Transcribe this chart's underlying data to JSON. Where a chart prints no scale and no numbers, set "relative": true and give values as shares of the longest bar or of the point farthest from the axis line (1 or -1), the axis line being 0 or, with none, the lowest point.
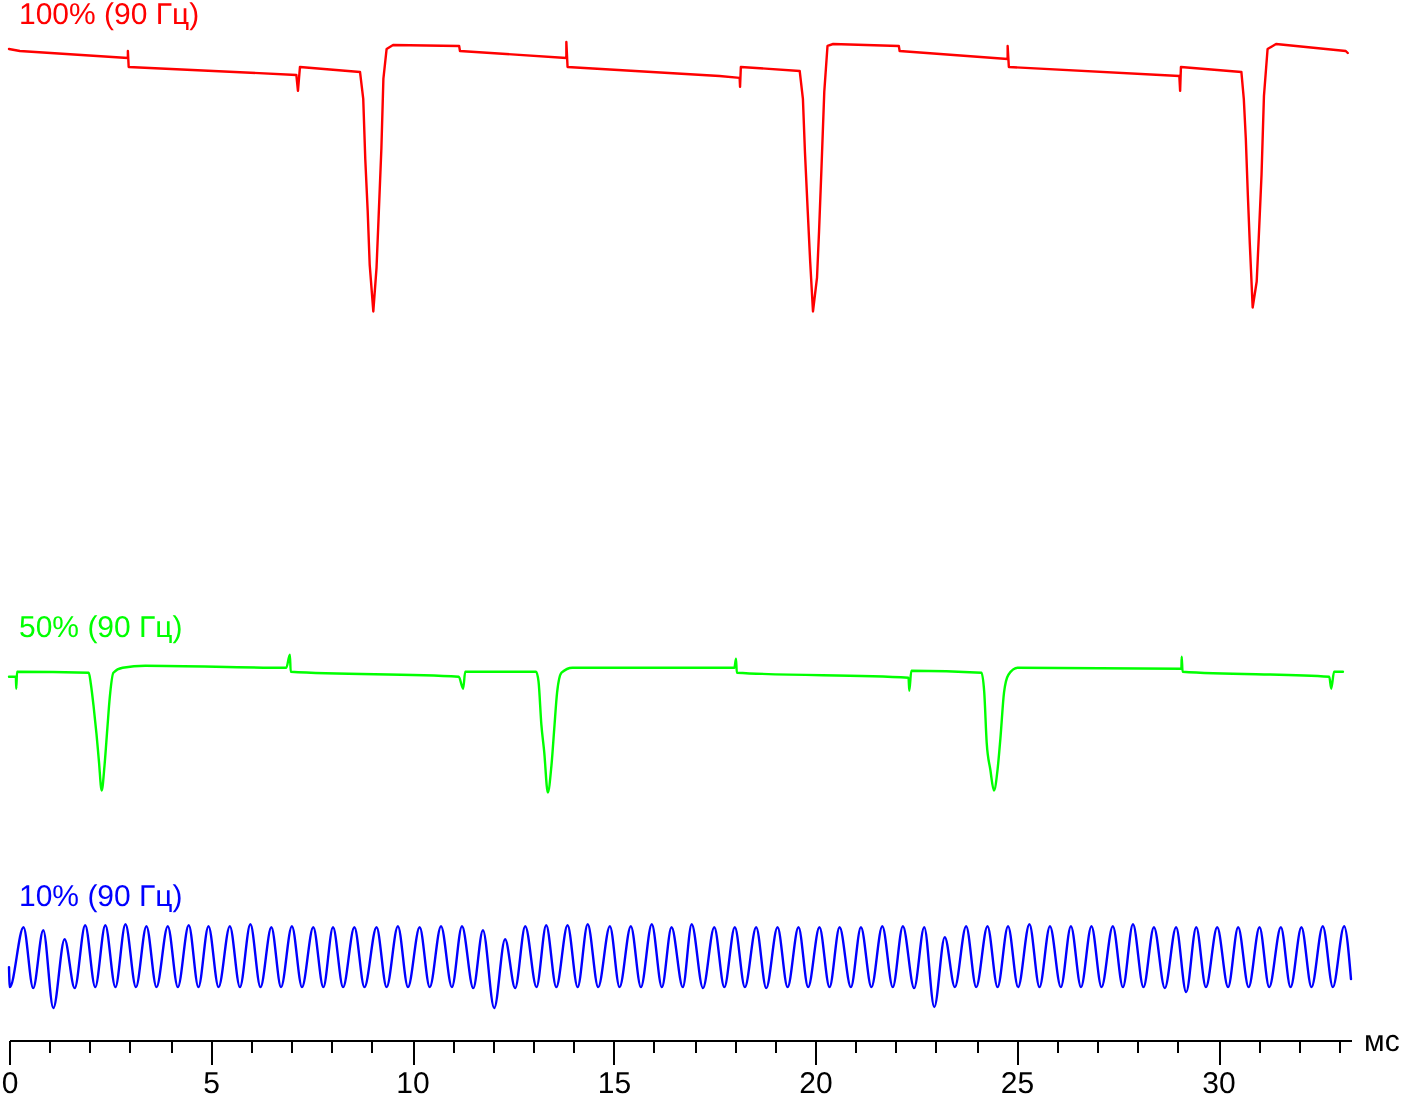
{
  "chart_data": {
    "type": "line",
    "xlabel": "мс",
    "relative": true,
    "xlim": [
      0,
      33.3
    ],
    "xticks": [
      0,
      {
        "value": 1,
        "label": null
      },
      {
        "value": 2,
        "label": null
      },
      {
        "value": 3,
        "label": null
      },
      {
        "value": 4,
        "label": null
      },
      5,
      {
        "value": 6,
        "label": null
      },
      {
        "value": 7,
        "label": null
      },
      {
        "value": 8,
        "label": null
      },
      {
        "value": 9,
        "label": null
      },
      10,
      {
        "value": 11,
        "label": null
      },
      {
        "value": 12,
        "label": null
      },
      {
        "value": 13,
        "label": null
      },
      {
        "value": 14,
        "label": null
      },
      15,
      {
        "value": 16,
        "label": null
      },
      {
        "value": 17,
        "label": null
      },
      {
        "value": 18,
        "label": null
      },
      {
        "value": 19,
        "label": null
      },
      20,
      {
        "value": 21,
        "label": null
      },
      {
        "value": 22,
        "label": null
      },
      {
        "value": 23,
        "label": null
      },
      {
        "value": 24,
        "label": null
      },
      25,
      {
        "value": 26,
        "label": null
      },
      {
        "value": 27,
        "label": null
      },
      {
        "value": 28,
        "label": null
      },
      {
        "value": 29,
        "label": null
      },
      30,
      {
        "value": 31,
        "label": null
      },
      {
        "value": 32,
        "label": null
      },
      {
        "value": 33,
        "label": null
      }
    ],
    "series": [
      {
        "name": "100% (90 Гц)",
        "color": "#ff0000",
        "x": [
          0.0,
          0.27,
          2.95,
          2.95,
          2.97,
          7.13,
          7.17,
          7.22,
          8.71,
          8.79,
          8.84,
          8.9,
          8.95,
          9.04,
          9.12,
          9.17,
          9.24,
          9.29,
          9.37,
          9.53,
          11.17,
          11.19,
          13.83,
          13.83,
          13.86,
          17.63,
          18.13,
          18.14,
          18.16,
          19.62,
          19.7,
          19.75,
          19.82,
          19.88,
          19.95,
          20.05,
          20.1,
          20.16,
          20.23,
          20.31,
          20.45,
          22.08,
          22.1,
          24.78,
          24.78,
          24.81,
          29.04,
          29.06,
          29.08,
          30.58,
          30.64,
          30.69,
          30.74,
          30.79,
          30.86,
          30.96,
          31.01,
          31.08,
          31.14,
          31.23,
          31.44,
          33.17,
          33.22
        ],
        "values": [
          0.993,
          0.991,
          0.984,
          0.991,
          0.975,
          0.967,
          0.951,
          0.975,
          0.97,
          0.943,
          0.883,
          0.831,
          0.777,
          0.73,
          0.774,
          0.823,
          0.893,
          0.963,
          0.993,
          0.997,
          0.996,
          0.991,
          0.984,
          1.0,
          0.975,
          0.966,
          0.964,
          0.955,
          0.975,
          0.971,
          0.943,
          0.89,
          0.83,
          0.78,
          0.73,
          0.764,
          0.81,
          0.873,
          0.95,
          0.996,
          0.998,
          0.996,
          0.991,
          0.983,
          0.996,
          0.975,
          0.966,
          0.951,
          0.975,
          0.97,
          0.943,
          0.903,
          0.847,
          0.797,
          0.734,
          0.76,
          0.803,
          0.867,
          0.946,
          0.993,
          0.998,
          0.991,
          0.989
        ]
      },
      {
        "name": "50% (90 Гц)",
        "color": "#00ff00",
        "x": [
          0.0,
          0.17,
          0.18,
          0.2,
          1.98,
          2.03,
          2.1,
          2.17,
          2.23,
          2.3,
          2.37,
          2.44,
          2.5,
          2.59,
          2.82,
          3.38,
          6.88,
          6.97,
          6.99,
          11.16,
          11.27,
          11.32,
          13.08,
          13.14,
          13.21,
          13.28,
          13.37,
          13.46,
          13.53,
          13.6,
          13.71,
          13.98,
          18.0,
          18.04,
          18.06,
          22.32,
          22.34,
          22.39,
          24.13,
          24.2,
          24.26,
          24.35,
          24.44,
          24.53,
          24.6,
          24.69,
          24.8,
          25.03,
          29.09,
          29.1,
          29.12,
          32.76,
          32.81,
          32.88,
          33.1
        ],
        "values": [
          0.364,
          0.364,
          0.352,
          0.369,
          0.368,
          0.357,
          0.334,
          0.307,
          0.28,
          0.25,
          0.275,
          0.312,
          0.343,
          0.368,
          0.373,
          0.375,
          0.373,
          0.386,
          0.369,
          0.364,
          0.352,
          0.369,
          0.369,
          0.359,
          0.316,
          0.289,
          0.248,
          0.275,
          0.312,
          0.348,
          0.368,
          0.373,
          0.373,
          0.382,
          0.368,
          0.363,
          0.35,
          0.37,
          0.368,
          0.348,
          0.298,
          0.271,
          0.25,
          0.271,
          0.302,
          0.348,
          0.366,
          0.373,
          0.372,
          0.384,
          0.369,
          0.364,
          0.352,
          0.369,
          0.369
        ]
      },
      {
        "name": "10% (90 Гц)",
        "color": "#0000ff",
        "x": [
          0.0,
          0.02,
          0.36,
          0.6,
          0.85,
          1.1,
          1.38,
          1.63,
          1.89,
          2.14,
          2.39,
          2.64,
          2.89,
          3.15,
          3.41,
          3.66,
          3.94,
          4.19,
          4.46,
          4.7,
          4.95,
          5.2,
          5.48,
          5.73,
          5.99,
          6.24,
          6.51,
          6.75,
          7.02,
          7.27,
          7.55,
          7.8,
          8.04,
          8.29,
          8.57,
          8.82,
          9.12,
          9.37,
          9.65,
          9.9,
          10.19,
          10.44,
          10.72,
          10.99,
          11.24,
          11.52,
          11.76,
          12.04,
          12.31,
          12.56,
          12.81,
          13.09,
          13.33,
          13.58,
          13.86,
          14.11,
          14.36,
          14.62,
          14.91,
          15.15,
          15.43,
          15.68,
          15.95,
          16.2,
          16.44,
          16.72,
          16.94,
          17.22,
          17.5,
          17.75,
          18.01,
          18.26,
          18.54,
          18.79,
          19.07,
          19.32,
          19.59,
          19.83,
          20.11,
          20.36,
          20.61,
          20.89,
          21.14,
          21.4,
          21.67,
          21.93,
          22.18,
          22.46,
          22.71,
          22.96,
          23.22,
          23.47,
          23.75,
          24.0,
          24.28,
          24.53,
          24.79,
          25.04,
          25.32,
          25.57,
          25.83,
          26.1,
          26.35,
          26.6,
          26.86,
          27.11,
          27.39,
          27.64,
          27.89,
          28.15,
          28.41,
          28.68,
          28.96,
          29.21,
          29.46,
          29.7,
          29.98,
          30.25,
          30.5,
          30.76,
          31.03,
          31.27,
          31.56,
          31.8,
          32.07,
          32.32,
          32.6,
          32.85,
          33.13,
          33.3
        ],
        "values": [
          0.073,
          0.053,
          0.113,
          0.052,
          0.11,
          0.032,
          0.101,
          0.052,
          0.115,
          0.053,
          0.115,
          0.053,
          0.116,
          0.053,
          0.114,
          0.053,
          0.114,
          0.053,
          0.115,
          0.053,
          0.114,
          0.053,
          0.114,
          0.053,
          0.116,
          0.053,
          0.113,
          0.053,
          0.114,
          0.053,
          0.113,
          0.053,
          0.113,
          0.053,
          0.113,
          0.053,
          0.113,
          0.053,
          0.114,
          0.053,
          0.113,
          0.053,
          0.114,
          0.053,
          0.114,
          0.052,
          0.11,
          0.032,
          0.101,
          0.052,
          0.114,
          0.053,
          0.115,
          0.053,
          0.115,
          0.053,
          0.116,
          0.053,
          0.114,
          0.053,
          0.114,
          0.053,
          0.116,
          0.053,
          0.113,
          0.053,
          0.116,
          0.052,
          0.113,
          0.053,
          0.113,
          0.053,
          0.113,
          0.052,
          0.113,
          0.053,
          0.113,
          0.053,
          0.113,
          0.053,
          0.113,
          0.053,
          0.113,
          0.053,
          0.114,
          0.053,
          0.114,
          0.052,
          0.113,
          0.033,
          0.103,
          0.053,
          0.114,
          0.053,
          0.114,
          0.053,
          0.114,
          0.053,
          0.116,
          0.053,
          0.114,
          0.053,
          0.114,
          0.053,
          0.114,
          0.053,
          0.114,
          0.053,
          0.116,
          0.053,
          0.113,
          0.052,
          0.113,
          0.048,
          0.113,
          0.053,
          0.113,
          0.053,
          0.113,
          0.053,
          0.113,
          0.053,
          0.113,
          0.053,
          0.113,
          0.053,
          0.114,
          0.053,
          0.114,
          0.061
        ]
      }
    ]
  }
}
